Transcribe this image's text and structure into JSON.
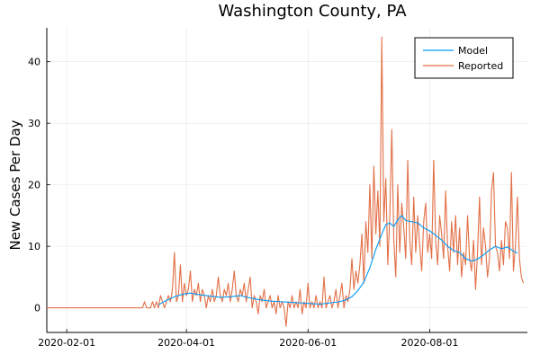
{
  "chart_data": {
    "type": "line",
    "title": "Washington County, PA",
    "xlabel": "",
    "ylabel": "New Cases Per Day",
    "x_axis_type": "date",
    "xlim": [
      "2020-01-22",
      "2020-09-19"
    ],
    "ylim": [
      -4,
      45.5
    ],
    "x_ticks": [
      "2020-02-01",
      "2020-04-01",
      "2020-06-01",
      "2020-08-01"
    ],
    "y_ticks": [
      0,
      10,
      20,
      30,
      40
    ],
    "grid": true,
    "legend_position": "top-right",
    "series": [
      {
        "name": "Model",
        "color": "#009AFA",
        "points": [
          [
            "2020-03-18",
            0.5
          ],
          [
            "2020-03-22",
            1.2
          ],
          [
            "2020-03-26",
            1.8
          ],
          [
            "2020-03-30",
            2.2
          ],
          [
            "2020-04-03",
            2.4
          ],
          [
            "2020-04-08",
            2.1
          ],
          [
            "2020-04-13",
            1.9
          ],
          [
            "2020-04-18",
            1.7
          ],
          [
            "2020-04-23",
            1.8
          ],
          [
            "2020-04-28",
            2.0
          ],
          [
            "2020-05-03",
            1.6
          ],
          [
            "2020-05-08",
            1.3
          ],
          [
            "2020-05-13",
            1.1
          ],
          [
            "2020-05-18",
            1.0
          ],
          [
            "2020-05-23",
            0.9
          ],
          [
            "2020-05-28",
            0.8
          ],
          [
            "2020-06-02",
            0.7
          ],
          [
            "2020-06-07",
            0.6
          ],
          [
            "2020-06-12",
            0.8
          ],
          [
            "2020-06-17",
            1.0
          ],
          [
            "2020-06-20",
            1.3
          ],
          [
            "2020-06-23",
            1.8
          ],
          [
            "2020-06-26",
            2.8
          ],
          [
            "2020-06-29",
            4.2
          ],
          [
            "2020-07-02",
            6.5
          ],
          [
            "2020-07-05",
            9.5
          ],
          [
            "2020-07-08",
            12.0
          ],
          [
            "2020-07-10",
            13.5
          ],
          [
            "2020-07-12",
            13.8
          ],
          [
            "2020-07-14",
            13.2
          ],
          [
            "2020-07-16",
            14.3
          ],
          [
            "2020-07-18",
            15.0
          ],
          [
            "2020-07-20",
            14.2
          ],
          [
            "2020-07-23",
            14.0
          ],
          [
            "2020-07-26",
            13.8
          ],
          [
            "2020-07-29",
            13.0
          ],
          [
            "2020-08-01",
            12.5
          ],
          [
            "2020-08-04",
            11.8
          ],
          [
            "2020-08-07",
            11.0
          ],
          [
            "2020-08-10",
            10.0
          ],
          [
            "2020-08-13",
            9.3
          ],
          [
            "2020-08-16",
            9.0
          ],
          [
            "2020-08-19",
            8.0
          ],
          [
            "2020-08-22",
            7.6
          ],
          [
            "2020-08-25",
            7.9
          ],
          [
            "2020-08-28",
            8.6
          ],
          [
            "2020-08-31",
            9.4
          ],
          [
            "2020-09-03",
            10.0
          ],
          [
            "2020-09-06",
            9.6
          ],
          [
            "2020-09-09",
            9.9
          ],
          [
            "2020-09-12",
            9.2
          ],
          [
            "2020-09-14",
            8.9
          ]
        ]
      },
      {
        "name": "Reported",
        "color": "#E26F46",
        "points": [
          [
            "2020-01-22",
            0
          ],
          [
            "2020-03-10",
            0
          ],
          [
            "2020-03-11",
            1
          ],
          [
            "2020-03-12",
            0
          ],
          [
            "2020-03-14",
            0
          ],
          [
            "2020-03-15",
            1
          ],
          [
            "2020-03-16",
            0
          ],
          [
            "2020-03-17",
            1
          ],
          [
            "2020-03-18",
            0
          ],
          [
            "2020-03-19",
            2
          ],
          [
            "2020-03-20",
            1
          ],
          [
            "2020-03-21",
            0
          ],
          [
            "2020-03-22",
            1
          ],
          [
            "2020-03-23",
            2
          ],
          [
            "2020-03-24",
            1
          ],
          [
            "2020-03-25",
            3
          ],
          [
            "2020-03-26",
            9
          ],
          [
            "2020-03-27",
            1
          ],
          [
            "2020-03-28",
            2
          ],
          [
            "2020-03-29",
            7
          ],
          [
            "2020-03-30",
            1
          ],
          [
            "2020-03-31",
            4
          ],
          [
            "2020-04-01",
            2
          ],
          [
            "2020-04-02",
            3
          ],
          [
            "2020-04-03",
            6
          ],
          [
            "2020-04-04",
            1
          ],
          [
            "2020-04-05",
            3
          ],
          [
            "2020-04-06",
            2
          ],
          [
            "2020-04-07",
            4
          ],
          [
            "2020-04-08",
            1
          ],
          [
            "2020-04-09",
            3
          ],
          [
            "2020-04-10",
            2
          ],
          [
            "2020-04-11",
            0
          ],
          [
            "2020-04-12",
            2
          ],
          [
            "2020-04-13",
            1
          ],
          [
            "2020-04-14",
            3
          ],
          [
            "2020-04-15",
            1
          ],
          [
            "2020-04-16",
            2
          ],
          [
            "2020-04-17",
            5
          ],
          [
            "2020-04-18",
            2
          ],
          [
            "2020-04-19",
            1
          ],
          [
            "2020-04-20",
            3
          ],
          [
            "2020-04-21",
            2
          ],
          [
            "2020-04-22",
            4
          ],
          [
            "2020-04-23",
            1
          ],
          [
            "2020-04-24",
            3
          ],
          [
            "2020-04-25",
            6
          ],
          [
            "2020-04-26",
            2
          ],
          [
            "2020-04-27",
            1
          ],
          [
            "2020-04-28",
            3
          ],
          [
            "2020-04-29",
            2
          ],
          [
            "2020-04-30",
            4
          ],
          [
            "2020-05-01",
            1
          ],
          [
            "2020-05-02",
            3
          ],
          [
            "2020-05-03",
            5
          ],
          [
            "2020-05-04",
            0
          ],
          [
            "2020-05-05",
            2
          ],
          [
            "2020-05-06",
            1
          ],
          [
            "2020-05-07",
            -1
          ],
          [
            "2020-05-08",
            2
          ],
          [
            "2020-05-09",
            1
          ],
          [
            "2020-05-10",
            3
          ],
          [
            "2020-05-11",
            0
          ],
          [
            "2020-05-12",
            1
          ],
          [
            "2020-05-13",
            2
          ],
          [
            "2020-05-14",
            0
          ],
          [
            "2020-05-15",
            1
          ],
          [
            "2020-05-16",
            -1
          ],
          [
            "2020-05-17",
            2
          ],
          [
            "2020-05-18",
            0
          ],
          [
            "2020-05-19",
            1
          ],
          [
            "2020-05-20",
            0
          ],
          [
            "2020-05-21",
            -3
          ],
          [
            "2020-05-22",
            1
          ],
          [
            "2020-05-23",
            0
          ],
          [
            "2020-05-24",
            2
          ],
          [
            "2020-05-25",
            0
          ],
          [
            "2020-05-26",
            1
          ],
          [
            "2020-05-27",
            0
          ],
          [
            "2020-05-28",
            3
          ],
          [
            "2020-05-29",
            -1
          ],
          [
            "2020-05-30",
            1
          ],
          [
            "2020-05-31",
            0
          ],
          [
            "2020-06-01",
            4
          ],
          [
            "2020-06-02",
            0
          ],
          [
            "2020-06-03",
            1
          ],
          [
            "2020-06-04",
            0
          ],
          [
            "2020-06-05",
            2
          ],
          [
            "2020-06-06",
            0
          ],
          [
            "2020-06-07",
            1
          ],
          [
            "2020-06-08",
            0
          ],
          [
            "2020-06-09",
            5
          ],
          [
            "2020-06-10",
            0
          ],
          [
            "2020-06-11",
            1
          ],
          [
            "2020-06-12",
            2
          ],
          [
            "2020-06-13",
            0
          ],
          [
            "2020-06-14",
            1
          ],
          [
            "2020-06-15",
            3
          ],
          [
            "2020-06-16",
            0
          ],
          [
            "2020-06-17",
            2
          ],
          [
            "2020-06-18",
            4
          ],
          [
            "2020-06-19",
            0
          ],
          [
            "2020-06-20",
            2
          ],
          [
            "2020-06-21",
            1
          ],
          [
            "2020-06-22",
            3
          ],
          [
            "2020-06-23",
            8
          ],
          [
            "2020-06-24",
            3
          ],
          [
            "2020-06-25",
            6
          ],
          [
            "2020-06-26",
            4
          ],
          [
            "2020-06-27",
            7
          ],
          [
            "2020-06-28",
            12
          ],
          [
            "2020-06-29",
            4
          ],
          [
            "2020-06-30",
            14
          ],
          [
            "2020-07-01",
            9
          ],
          [
            "2020-07-02",
            20
          ],
          [
            "2020-07-03",
            8
          ],
          [
            "2020-07-04",
            23
          ],
          [
            "2020-07-05",
            12
          ],
          [
            "2020-07-06",
            19
          ],
          [
            "2020-07-07",
            10
          ],
          [
            "2020-07-08",
            44
          ],
          [
            "2020-07-09",
            14
          ],
          [
            "2020-07-10",
            21
          ],
          [
            "2020-07-11",
            7
          ],
          [
            "2020-07-12",
            15
          ],
          [
            "2020-07-13",
            29
          ],
          [
            "2020-07-14",
            11
          ],
          [
            "2020-07-15",
            5
          ],
          [
            "2020-07-16",
            20
          ],
          [
            "2020-07-17",
            9
          ],
          [
            "2020-07-18",
            17
          ],
          [
            "2020-07-19",
            13
          ],
          [
            "2020-07-20",
            8
          ],
          [
            "2020-07-21",
            24
          ],
          [
            "2020-07-22",
            11
          ],
          [
            "2020-07-23",
            7
          ],
          [
            "2020-07-24",
            18
          ],
          [
            "2020-07-25",
            9
          ],
          [
            "2020-07-26",
            15
          ],
          [
            "2020-07-27",
            10
          ],
          [
            "2020-07-28",
            6
          ],
          [
            "2020-07-29",
            14
          ],
          [
            "2020-07-30",
            17
          ],
          [
            "2020-07-31",
            9
          ],
          [
            "2020-08-01",
            12
          ],
          [
            "2020-08-02",
            8
          ],
          [
            "2020-08-03",
            24
          ],
          [
            "2020-08-04",
            11
          ],
          [
            "2020-08-05",
            7
          ],
          [
            "2020-08-06",
            15
          ],
          [
            "2020-08-07",
            12
          ],
          [
            "2020-08-08",
            8
          ],
          [
            "2020-08-09",
            19
          ],
          [
            "2020-08-10",
            10
          ],
          [
            "2020-08-11",
            6
          ],
          [
            "2020-08-12",
            14
          ],
          [
            "2020-08-13",
            9
          ],
          [
            "2020-08-14",
            15
          ],
          [
            "2020-08-15",
            7
          ],
          [
            "2020-08-16",
            13
          ],
          [
            "2020-08-17",
            5
          ],
          [
            "2020-08-18",
            9
          ],
          [
            "2020-08-19",
            7
          ],
          [
            "2020-08-20",
            15
          ],
          [
            "2020-08-21",
            8
          ],
          [
            "2020-08-22",
            6
          ],
          [
            "2020-08-23",
            11
          ],
          [
            "2020-08-24",
            3
          ],
          [
            "2020-08-25",
            9
          ],
          [
            "2020-08-26",
            18
          ],
          [
            "2020-08-27",
            7
          ],
          [
            "2020-08-28",
            13
          ],
          [
            "2020-08-29",
            10
          ],
          [
            "2020-08-30",
            5
          ],
          [
            "2020-08-31",
            8
          ],
          [
            "2020-09-01",
            19
          ],
          [
            "2020-09-02",
            22
          ],
          [
            "2020-09-03",
            10
          ],
          [
            "2020-09-04",
            9
          ],
          [
            "2020-09-05",
            6
          ],
          [
            "2020-09-06",
            11
          ],
          [
            "2020-09-07",
            7
          ],
          [
            "2020-09-08",
            14
          ],
          [
            "2020-09-09",
            13
          ],
          [
            "2020-09-10",
            8
          ],
          [
            "2020-09-11",
            22
          ],
          [
            "2020-09-12",
            6
          ],
          [
            "2020-09-13",
            10
          ],
          [
            "2020-09-14",
            18
          ],
          [
            "2020-09-15",
            8
          ],
          [
            "2020-09-16",
            5
          ],
          [
            "2020-09-17",
            4
          ]
        ]
      }
    ]
  }
}
